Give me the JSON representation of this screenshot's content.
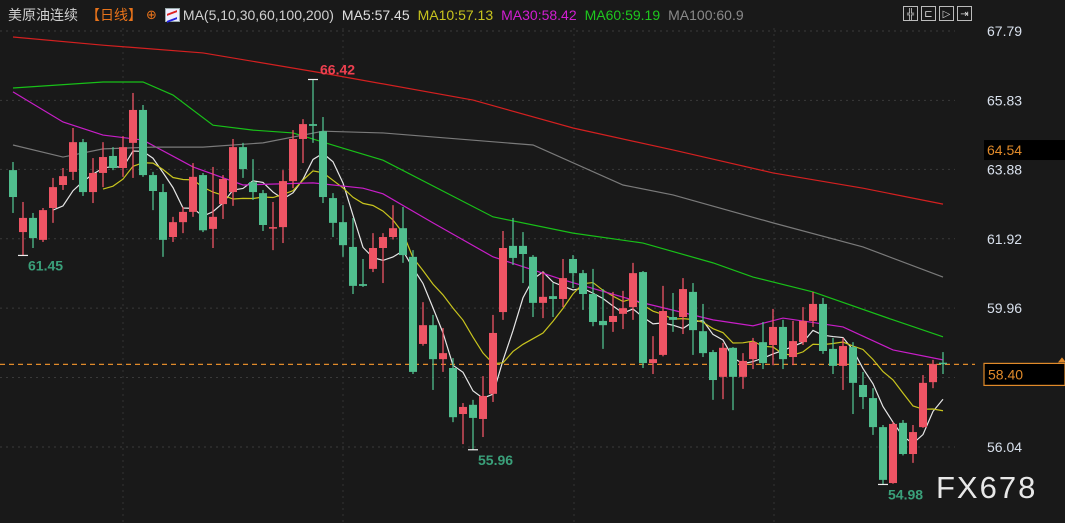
{
  "header": {
    "symbol": "美原油连续",
    "period": "【日线】",
    "indicator": "MA(5,10,30,60,100,200)",
    "ma_values": [
      {
        "label": "MA5:57.45",
        "color": "#e0e0e0"
      },
      {
        "label": "MA10:57.13",
        "color": "#c8c41e"
      },
      {
        "label": "MA30:58.42",
        "color": "#d21ed2"
      },
      {
        "label": "MA60:59.19",
        "color": "#1ec81e"
      },
      {
        "label": "MA100:60.9",
        "color": "#8a8a8a"
      }
    ],
    "tools": [
      "crosshair-icon",
      "range-icon",
      "play-icon",
      "exit-icon"
    ]
  },
  "watermark": "FX678",
  "colors": {
    "up": "#ee5464",
    "down": "#50be8e",
    "background": "#191919",
    "last_price": "#e08a2a"
  },
  "chart_data": {
    "type": "candlestick",
    "y_axis": {
      "ticks": [
        "67.79",
        "65.83",
        "63.88",
        "61.92",
        "59.96",
        "56.04"
      ],
      "tick_values": [
        67.79,
        65.83,
        63.88,
        61.92,
        59.96,
        56.04
      ],
      "highlight": {
        "label": "64.54",
        "value": 64.54
      },
      "last_price": {
        "label": "58.40",
        "value": 58.4
      },
      "range": [
        54.5,
        68.5
      ],
      "grid": true
    },
    "annotations": [
      {
        "index": 30,
        "label": "66.42",
        "value": 66.42,
        "kind": "high",
        "color": "#ee4050"
      },
      {
        "index": 1,
        "label": "61.45",
        "value": 61.45,
        "kind": "low",
        "color": "#3aa07a"
      },
      {
        "index": 46,
        "label": "55.96",
        "value": 55.96,
        "kind": "low",
        "color": "#3aa07a"
      },
      {
        "index": 87,
        "label": "54.98",
        "value": 54.98,
        "kind": "low",
        "color": "#3aa07a"
      }
    ],
    "candles_ohlc": [
      [
        63.86,
        64.09,
        62.65,
        63.1
      ],
      [
        62.11,
        62.96,
        61.45,
        62.51
      ],
      [
        62.51,
        62.65,
        61.66,
        61.94
      ],
      [
        61.89,
        62.79,
        61.83,
        62.73
      ],
      [
        62.79,
        63.64,
        62.37,
        63.38
      ],
      [
        63.44,
        63.92,
        63.3,
        63.69
      ],
      [
        63.81,
        65.05,
        63.58,
        64.65
      ],
      [
        64.65,
        64.74,
        63.13,
        63.24
      ],
      [
        63.24,
        64.2,
        62.93,
        63.78
      ],
      [
        63.78,
        64.65,
        63.38,
        64.23
      ],
      [
        64.26,
        64.51,
        63.86,
        63.92
      ],
      [
        63.92,
        64.82,
        63.67,
        64.51
      ],
      [
        64.63,
        66.04,
        63.64,
        65.56
      ],
      [
        65.56,
        65.7,
        63.67,
        63.72
      ],
      [
        63.72,
        63.81,
        62.73,
        63.27
      ],
      [
        63.24,
        63.47,
        61.41,
        61.89
      ],
      [
        61.97,
        62.54,
        61.83,
        62.39
      ],
      [
        62.39,
        62.82,
        62.08,
        62.68
      ],
      [
        62.68,
        64.06,
        62.54,
        63.67
      ],
      [
        63.72,
        63.78,
        62.11,
        62.16
      ],
      [
        62.2,
        63.95,
        61.66,
        62.54
      ],
      [
        62.9,
        63.72,
        62.48,
        63.61
      ],
      [
        63.24,
        64.74,
        62.85,
        64.51
      ],
      [
        64.51,
        64.63,
        63.64,
        63.89
      ],
      [
        63.52,
        64.17,
        63.02,
        63.24
      ],
      [
        63.21,
        63.3,
        62.14,
        62.31
      ],
      [
        62.22,
        62.96,
        61.6,
        62.25
      ],
      [
        62.25,
        63.86,
        61.8,
        63.55
      ],
      [
        63.55,
        64.99,
        63.35,
        64.74
      ],
      [
        64.74,
        65.3,
        64.06,
        65.16
      ],
      [
        65.16,
        66.42,
        64.63,
        65.11
      ],
      [
        64.96,
        65.36,
        62.93,
        63.1
      ],
      [
        63.07,
        63.21,
        61.97,
        62.37
      ],
      [
        62.39,
        62.87,
        61.41,
        61.74
      ],
      [
        61.69,
        62.51,
        60.36,
        60.59
      ],
      [
        60.64,
        61.35,
        60.56,
        60.59
      ],
      [
        61.07,
        62.08,
        60.98,
        61.66
      ],
      [
        61.66,
        62.08,
        60.67,
        61.97
      ],
      [
        61.97,
        62.87,
        61.9,
        62.22
      ],
      [
        62.22,
        62.82,
        61.24,
        61.46
      ],
      [
        61.41,
        61.6,
        58.1,
        58.16
      ],
      [
        58.95,
        60.13,
        58.9,
        59.48
      ],
      [
        59.48,
        59.77,
        57.65,
        58.52
      ],
      [
        58.52,
        59.4,
        58.16,
        58.69
      ],
      [
        58.27,
        58.55,
        56.74,
        56.88
      ],
      [
        56.97,
        57.28,
        56.12,
        57.17
      ],
      [
        57.23,
        57.37,
        55.96,
        56.86
      ],
      [
        56.83,
        58.04,
        56.32,
        57.48
      ],
      [
        57.54,
        59.77,
        57.31,
        59.26
      ],
      [
        59.85,
        62.14,
        59.63,
        61.66
      ],
      [
        61.72,
        62.51,
        61.18,
        61.38
      ],
      [
        61.72,
        62.11,
        60.67,
        61.49
      ],
      [
        61.41,
        61.46,
        59.71,
        60.11
      ],
      [
        60.11,
        60.98,
        59.68,
        60.28
      ],
      [
        60.3,
        60.67,
        59.71,
        60.22
      ],
      [
        60.22,
        61.35,
        59.99,
        60.81
      ],
      [
        61.35,
        61.46,
        60.53,
        60.95
      ],
      [
        60.95,
        61.04,
        59.91,
        60.36
      ],
      [
        60.36,
        61.07,
        59.45,
        59.57
      ],
      [
        59.6,
        60.5,
        58.81,
        59.48
      ],
      [
        59.57,
        60.42,
        59.29,
        59.74
      ],
      [
        59.8,
        60.45,
        59.37,
        59.96
      ],
      [
        59.99,
        61.24,
        59.63,
        60.95
      ],
      [
        60.98,
        61.01,
        58.27,
        58.41
      ],
      [
        58.41,
        59.17,
        58.1,
        58.52
      ],
      [
        58.64,
        60.59,
        58.6,
        59.88
      ],
      [
        59.71,
        60.39,
        59.29,
        59.63
      ],
      [
        59.71,
        60.81,
        59.23,
        60.5
      ],
      [
        60.42,
        60.67,
        58.64,
        59.34
      ],
      [
        59.31,
        60.08,
        58.58,
        58.69
      ],
      [
        58.72,
        58.78,
        57.37,
        57.93
      ],
      [
        58.02,
        58.98,
        57.39,
        58.84
      ],
      [
        58.84,
        58.86,
        57.08,
        58.02
      ],
      [
        58.02,
        58.69,
        57.68,
        58.47
      ],
      [
        58.52,
        59.12,
        58.24,
        59.0
      ],
      [
        59.0,
        59.57,
        58.24,
        58.41
      ],
      [
        58.92,
        59.94,
        58.35,
        59.43
      ],
      [
        59.43,
        59.63,
        58.24,
        58.52
      ],
      [
        58.58,
        59.6,
        58.35,
        59.03
      ],
      [
        59.0,
        59.99,
        58.92,
        59.6
      ],
      [
        59.6,
        60.42,
        59.43,
        60.08
      ],
      [
        60.08,
        60.25,
        58.67,
        58.75
      ],
      [
        58.81,
        59.12,
        58.1,
        58.33
      ],
      [
        58.33,
        59.12,
        57.65,
        58.89
      ],
      [
        58.86,
        59.0,
        56.97,
        57.85
      ],
      [
        57.79,
        58.16,
        57.11,
        57.45
      ],
      [
        57.42,
        57.7,
        56.38,
        56.6
      ],
      [
        56.6,
        56.66,
        54.98,
        55.11
      ],
      [
        55.02,
        56.75,
        55.0,
        56.69
      ],
      [
        56.72,
        56.8,
        55.8,
        55.84
      ],
      [
        55.84,
        56.66,
        55.59,
        56.46
      ],
      [
        56.6,
        58.07,
        56.58,
        57.85
      ],
      [
        57.87,
        58.5,
        57.7,
        58.38
      ],
      [
        58.42,
        58.72,
        58.1,
        58.4
      ]
    ],
    "moving_averages": [
      {
        "name": "MA5",
        "period": 5,
        "color": "#e6e6e6"
      },
      {
        "name": "MA10",
        "period": 10,
        "color": "#c8c41e"
      },
      {
        "name": "MA30",
        "color": "#c81ec8",
        "points": [
          [
            0,
            66.07
          ],
          [
            5,
            65.22
          ],
          [
            9,
            64.85
          ],
          [
            13,
            64.71
          ],
          [
            18,
            63.95
          ],
          [
            23,
            63.44
          ],
          [
            30,
            63.5
          ],
          [
            35,
            63.35
          ],
          [
            37,
            63.19
          ],
          [
            42,
            62.37
          ],
          [
            48,
            61.41
          ],
          [
            55,
            60.76
          ],
          [
            63,
            60.11
          ],
          [
            70,
            59.63
          ],
          [
            74,
            59.46
          ],
          [
            77,
            59.68
          ],
          [
            83,
            59.43
          ],
          [
            88,
            58.78
          ],
          [
            93,
            58.5
          ]
        ]
      },
      {
        "name": "MA60",
        "color": "#18c018",
        "points": [
          [
            0,
            66.18
          ],
          [
            9,
            66.35
          ],
          [
            13,
            66.35
          ],
          [
            16,
            65.98
          ],
          [
            20,
            65.13
          ],
          [
            24,
            64.99
          ],
          [
            28,
            64.91
          ],
          [
            33,
            64.48
          ],
          [
            37,
            64.14
          ],
          [
            48,
            62.54
          ],
          [
            56,
            62.08
          ],
          [
            63,
            61.8
          ],
          [
            70,
            61.24
          ],
          [
            74,
            60.84
          ],
          [
            80,
            60.42
          ],
          [
            88,
            59.63
          ],
          [
            93,
            59.15
          ]
        ]
      },
      {
        "name": "MA100",
        "color": "#7a7a7a",
        "points": [
          [
            0,
            64.57
          ],
          [
            5,
            64.23
          ],
          [
            9,
            64.46
          ],
          [
            14,
            64.51
          ],
          [
            19,
            64.51
          ],
          [
            25,
            64.63
          ],
          [
            31,
            64.96
          ],
          [
            37,
            64.91
          ],
          [
            52,
            64.57
          ],
          [
            61,
            63.44
          ],
          [
            66,
            63.16
          ],
          [
            76,
            62.37
          ],
          [
            85,
            61.69
          ],
          [
            93,
            60.84
          ]
        ]
      },
      {
        "name": "MA200",
        "color": "#d42020",
        "points": [
          [
            0,
            67.62
          ],
          [
            9,
            67.39
          ],
          [
            19,
            67.17
          ],
          [
            31,
            66.6
          ],
          [
            46,
            65.84
          ],
          [
            56,
            65.05
          ],
          [
            66,
            64.43
          ],
          [
            76,
            63.78
          ],
          [
            85,
            63.35
          ],
          [
            93,
            62.9
          ]
        ]
      }
    ]
  }
}
